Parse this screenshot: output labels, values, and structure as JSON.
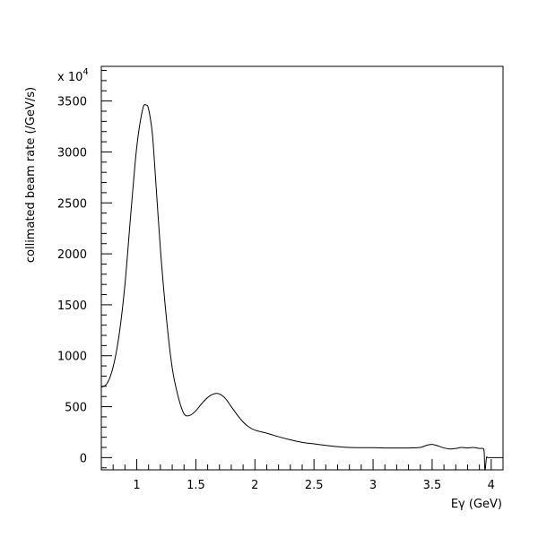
{
  "chart_data": {
    "type": "line",
    "title": "",
    "xlabel": "Eγ (GeV)",
    "ylabel": "collimated beam rate (/GeV/s)",
    "y_multiplier_label": "x 10",
    "y_multiplier_exponent": "4",
    "xlim": [
      0.7,
      4.1
    ],
    "ylim": [
      -120,
      3840
    ],
    "x_ticks": [
      1,
      1.5,
      2,
      2.5,
      3,
      3.5,
      4
    ],
    "x_tick_labels": [
      "1",
      "1.5",
      "2",
      "2.5",
      "3",
      "3.5",
      "4"
    ],
    "y_ticks": [
      0,
      500,
      1000,
      1500,
      2000,
      2500,
      3000,
      3500
    ],
    "y_tick_labels": [
      "0",
      "500",
      "1000",
      "1500",
      "2000",
      "2500",
      "3000",
      "3500"
    ],
    "grid": false,
    "series": [
      {
        "x": [
          0.7,
          0.75,
          0.8,
          0.85,
          0.9,
          0.95,
          1.0,
          1.05,
          1.08,
          1.1,
          1.13,
          1.15,
          1.2,
          1.25,
          1.3,
          1.35,
          1.4,
          1.45,
          1.5,
          1.55,
          1.6,
          1.65,
          1.7,
          1.75,
          1.8,
          1.85,
          1.9,
          1.95,
          2.0,
          2.1,
          2.2,
          2.3,
          2.4,
          2.5,
          2.6,
          2.7,
          2.8,
          2.9,
          3.0,
          3.1,
          3.2,
          3.3,
          3.4,
          3.45,
          3.5,
          3.55,
          3.6,
          3.65,
          3.7,
          3.75,
          3.8,
          3.85,
          3.9,
          3.93,
          3.94,
          3.945,
          3.95,
          3.96,
          3.97,
          4.0,
          4.05,
          4.1
        ],
        "y": [
          690,
          730,
          890,
          1200,
          1700,
          2400,
          3050,
          3420,
          3460,
          3420,
          3200,
          2900,
          2050,
          1380,
          880,
          600,
          430,
          415,
          460,
          530,
          590,
          625,
          625,
          580,
          500,
          420,
          350,
          300,
          270,
          240,
          205,
          175,
          150,
          135,
          120,
          108,
          100,
          98,
          98,
          95,
          95,
          95,
          100,
          120,
          130,
          115,
          95,
          85,
          90,
          100,
          95,
          100,
          90,
          90,
          60,
          -100,
          -110,
          0,
          0,
          0,
          0,
          0
        ]
      }
    ]
  }
}
